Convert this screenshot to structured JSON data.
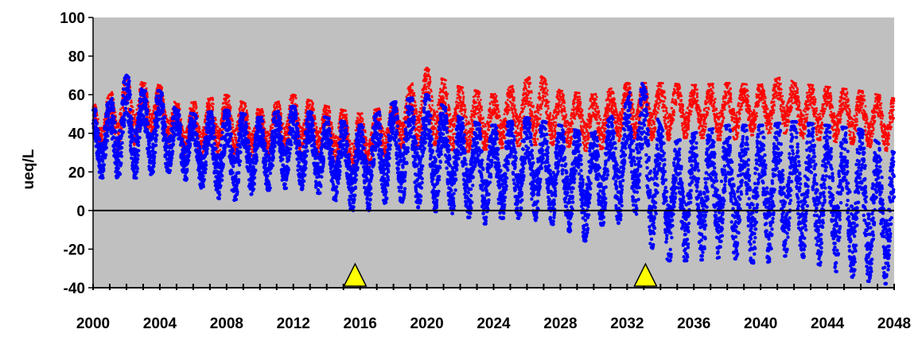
{
  "chart_data": {
    "type": "scatter",
    "title": "",
    "xlabel": "",
    "ylabel": "ueq/L",
    "xlim": [
      2000,
      2048
    ],
    "ylim": [
      -40,
      100
    ],
    "x_ticks": [
      "2000",
      "2004",
      "2008",
      "2012",
      "2016",
      "2020",
      "2024",
      "2028",
      "2032",
      "2036",
      "2040",
      "2044",
      "2048"
    ],
    "y_ticks": [
      "100",
      "80",
      "60",
      "40",
      "20",
      "0",
      "-20",
      "-40"
    ],
    "plot_background": "#c0c0c0",
    "grid": false,
    "legend": "none",
    "reference_line": {
      "y": 0,
      "color": "#000000"
    },
    "markers": [
      {
        "shape": "triangle",
        "color": "#ffff00",
        "x": 2015.7,
        "y": -40
      },
      {
        "shape": "triangle",
        "color": "#ffff00",
        "x": 2033.1,
        "y": -40
      }
    ],
    "series": [
      {
        "color": "#ff0000",
        "x": [
          2000,
          2001,
          2002,
          2003,
          2004,
          2005,
          2006,
          2008,
          2010,
          2012,
          2014,
          2016,
          2018,
          2020,
          2020.5,
          2022,
          2024,
          2026,
          2026.5,
          2028,
          2030,
          2032,
          2034,
          2036,
          2038,
          2040,
          2041.5,
          2042,
          2044,
          2046,
          2048
        ],
        "max": [
          54,
          60,
          70,
          66,
          65,
          55,
          56,
          60,
          52,
          60,
          54,
          50,
          55,
          74,
          70,
          64,
          60,
          68,
          72,
          62,
          60,
          66,
          66,
          65,
          66,
          65,
          70,
          66,
          64,
          62,
          58
        ],
        "min": [
          32,
          28,
          34,
          34,
          40,
          30,
          26,
          30,
          28,
          30,
          28,
          18,
          32,
          34,
          34,
          30,
          32,
          34,
          34,
          34,
          30,
          38,
          36,
          38,
          36,
          40,
          40,
          38,
          36,
          34,
          30
        ]
      },
      {
        "color": "#0000ff",
        "x": [
          2000,
          2001,
          2002,
          2003,
          2004,
          2005,
          2006,
          2008,
          2010,
          2012,
          2014,
          2016,
          2018,
          2020,
          2022,
          2023.5,
          2024,
          2026,
          2028,
          2029.5,
          2030,
          2032,
          2032.5,
          2033,
          2034.5,
          2036,
          2038,
          2040,
          2042,
          2044,
          2046,
          2047.5,
          2048
        ],
        "max": [
          52,
          56,
          70,
          62,
          62,
          52,
          50,
          52,
          48,
          54,
          48,
          44,
          56,
          60,
          48,
          44,
          44,
          48,
          44,
          40,
          40,
          56,
          72,
          64,
          34,
          40,
          44,
          44,
          46,
          44,
          42,
          32,
          30
        ],
        "min": [
          18,
          16,
          18,
          16,
          22,
          18,
          14,
          4,
          10,
          12,
          8,
          -2,
          6,
          0,
          -2,
          -7,
          -4,
          -4,
          -8,
          -16,
          -8,
          -6,
          0,
          -16,
          -26,
          -26,
          -24,
          -28,
          -22,
          -30,
          -36,
          -38,
          -34
        ]
      }
    ]
  }
}
